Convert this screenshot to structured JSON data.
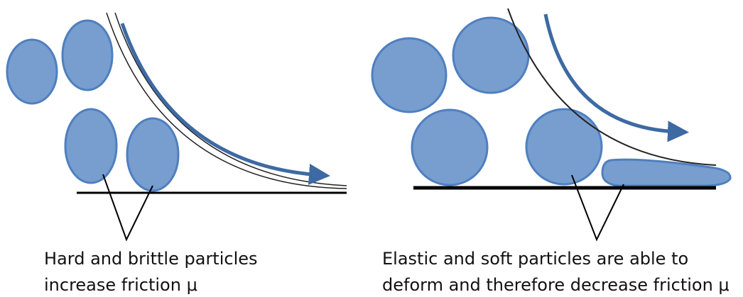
{
  "panels": [
    {
      "caption": [
        "Hard and brittle particles",
        "increase friction μ"
      ]
    },
    {
      "caption": [
        "Elastic and soft particles are able to",
        "deform and therefore decrease friction μ"
      ]
    }
  ]
}
